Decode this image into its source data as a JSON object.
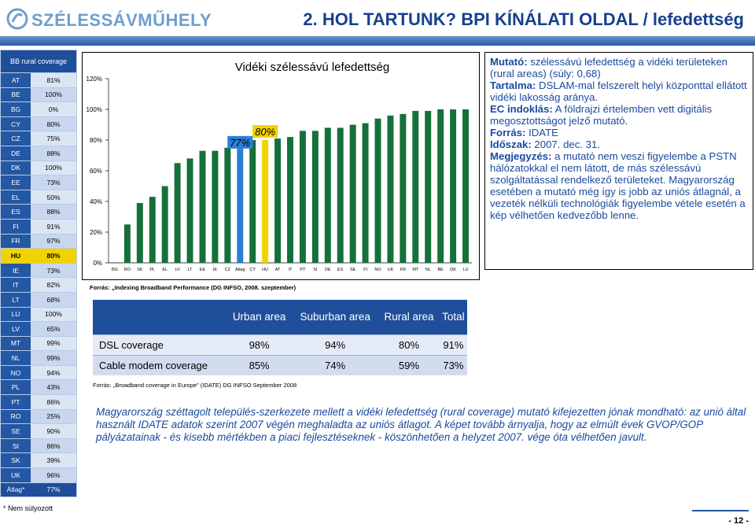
{
  "header": {
    "logo_text": "SZÉLESSÁVMŰHELY",
    "title": "2. HOL TARTUNK?  BPI KÍNÁLATI OLDAL / lefedettség"
  },
  "country_table": {
    "header": "BB rural coverage",
    "rows": [
      {
        "code": "AT",
        "value": "81%"
      },
      {
        "code": "BE",
        "value": "100%"
      },
      {
        "code": "BG",
        "value": "0%"
      },
      {
        "code": "CY",
        "value": "80%"
      },
      {
        "code": "CZ",
        "value": "75%"
      },
      {
        "code": "DE",
        "value": "88%"
      },
      {
        "code": "DK",
        "value": "100%"
      },
      {
        "code": "EE",
        "value": "73%"
      },
      {
        "code": "EL",
        "value": "50%"
      },
      {
        "code": "ES",
        "value": "88%"
      },
      {
        "code": "FI",
        "value": "91%"
      },
      {
        "code": "FR",
        "value": "97%"
      },
      {
        "code": "HU",
        "value": "80%"
      },
      {
        "code": "IE",
        "value": "73%"
      },
      {
        "code": "IT",
        "value": "82%"
      },
      {
        "code": "LT",
        "value": "68%"
      },
      {
        "code": "LU",
        "value": "100%"
      },
      {
        "code": "LV",
        "value": "65%"
      },
      {
        "code": "MT",
        "value": "99%"
      },
      {
        "code": "NL",
        "value": "99%"
      },
      {
        "code": "NO",
        "value": "94%"
      },
      {
        "code": "PL",
        "value": "43%"
      },
      {
        "code": "PT",
        "value": "86%"
      },
      {
        "code": "RO",
        "value": "25%"
      },
      {
        "code": "SE",
        "value": "90%"
      },
      {
        "code": "SI",
        "value": "86%"
      },
      {
        "code": "SK",
        "value": "39%"
      },
      {
        "code": "UK",
        "value": "96%"
      },
      {
        "code": "Átlag*",
        "value": "77%"
      }
    ],
    "footnote": "* Nem súlyozott"
  },
  "chart_data": {
    "type": "bar",
    "title": "Vidéki szélessávú lefedettség",
    "categories": [
      "BG",
      "RO",
      "SK",
      "PL",
      "EL",
      "LV",
      "LT",
      "EE",
      "IE",
      "CZ",
      "Átlag",
      "CY",
      "HU",
      "AT",
      "IT",
      "PT",
      "SI",
      "DE",
      "ES",
      "SE",
      "FI",
      "NO",
      "UK",
      "FR",
      "MT",
      "NL",
      "BE",
      "DK",
      "LU"
    ],
    "values": [
      0,
      25,
      39,
      43,
      50,
      65,
      68,
      73,
      73,
      75,
      77,
      80,
      80,
      81,
      82,
      86,
      86,
      88,
      88,
      90,
      91,
      94,
      96,
      97,
      99,
      99,
      100,
      100,
      100
    ],
    "ylim": [
      0,
      120
    ],
    "yticks": [
      "0%",
      "20%",
      "40%",
      "60%",
      "80%",
      "100%",
      "120%"
    ],
    "annotations": [
      {
        "label": "77%",
        "category": "Átlag"
      },
      {
        "label": "80%",
        "category": "HU"
      }
    ],
    "colors": {
      "bar": "#15703a",
      "highlight_avg": "#2b7fd8",
      "highlight_hu": "#f2d300",
      "plot_bg": "#ffffff"
    }
  },
  "chart_source": {
    "prefix": "Forrás: ",
    "text": "„Indexing Broadband Performance (DG INFSO, 2008. szeptember)"
  },
  "coverage_table": {
    "columns": [
      "",
      "Urban area",
      "Suburban area",
      "Rural area",
      "Total"
    ],
    "rows": [
      {
        "label": "DSL coverage",
        "urban": "98%",
        "suburban": "94%",
        "rural": "80%",
        "total": "91%"
      },
      {
        "label": "Cable modem coverage",
        "urban": "85%",
        "suburban": "74%",
        "rural": "59%",
        "total": "73%"
      }
    ]
  },
  "coverage_source": "Forrás: „Broadband coverage in Europe” (IDATE) DG INFSO September 2008",
  "info_box": {
    "mutato_label": "Mutató:",
    "mutato_text": " szélessávú lefedettség a vidéki területeken (rural areas) (súly: 0,68)",
    "tartalma_label": "Tartalma:",
    "tartalma_text": " DSLAM-mal felszerelt helyi központtal ellátott vidéki lakosság aránya.",
    "ec_label": "EC indoklás:",
    "ec_text": " A földrajzi értelemben vett digitális megosztottságot jelző mutató.",
    "forras_label": "Forrás:",
    "forras_text": " IDATE",
    "idoszak_label": "Időszak:",
    "idoszak_text": " 2007. dec. 31.",
    "megj_label": "Megjegyzés:",
    "megj_text": " a mutató nem veszi figyelembe a PSTN hálózatokkal el nem látott, de más szélessávú szolgáltatással rendelkező területeket. Magyarország esetében a mutató még így is jobb az uniós átlagnál, a vezeték nélküli technológiák figyelembe vétele esetén a kép vélhetően kedvezőbb lenne."
  },
  "summary": "Magyarország széttagolt település-szerkezete mellett a vidéki lefedettség (rural coverage) mutató kifejezetten jónak mondható: az unió által használt IDATE adatok szerint 2007 végén meghaladta az uniós átlagot. A képet tovább árnyalja, hogy az elmúlt évek GVOP/GOP pályázatainak - és kisebb mértékben a piaci fejlesztéseknek - köszönhetően a helyzet 2007. vége óta vélhetően javult.",
  "page_number": "- 12 -"
}
